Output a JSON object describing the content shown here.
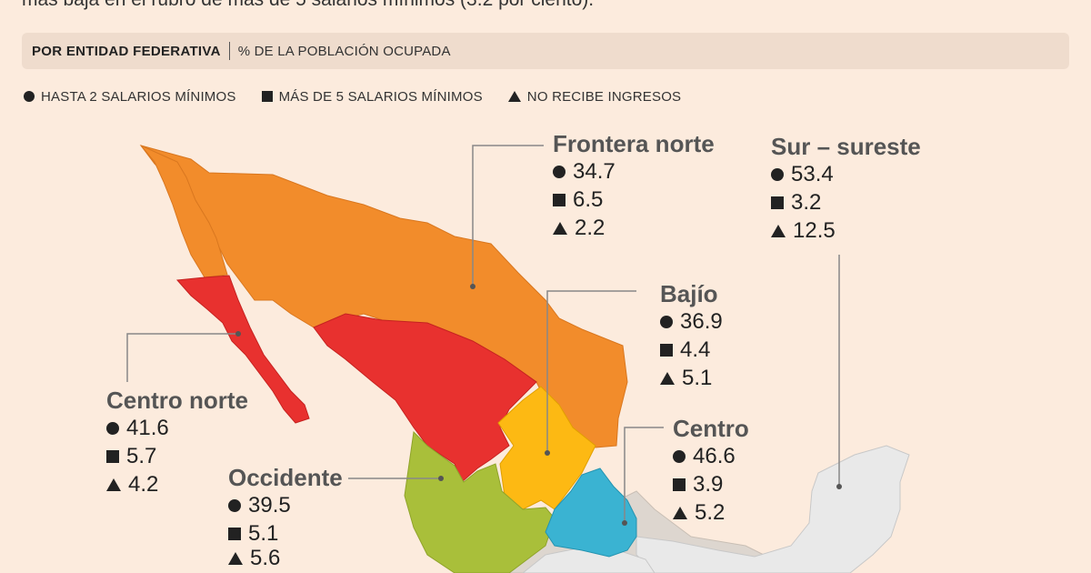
{
  "intro_text": "más baja en el rubro de más de 5 salarios mínimos (3.2 por ciento).",
  "header": {
    "title": "POR ENTIDAD FEDERATIVA",
    "subtitle": "% DE LA POBLACIÓN OCUPADA"
  },
  "legend": [
    {
      "icon": "circle-icon",
      "label": "HASTA 2 SALARIOS MÍNIMOS"
    },
    {
      "icon": "square-icon",
      "label": "MÁS DE 5 SALARIOS MÍNIMOS"
    },
    {
      "icon": "triangle-icon",
      "label": "NO RECIBE INGRESOS"
    }
  ],
  "region_colors": {
    "frontera_norte": "#f28c2b",
    "centro_norte": "#e8312f",
    "bajio": "#fdb913",
    "occidente": "#a9bf3a",
    "centro": "#3ab3d2",
    "sur_sureste": "#e9e9e9",
    "other": "#ddd6cf"
  },
  "regions": {
    "frontera_norte": {
      "name": "Frontera norte",
      "hasta2": "34.7",
      "mas5": "6.5",
      "sin_ingresos": "2.2"
    },
    "sur_sureste": {
      "name": "Sur – sureste",
      "hasta2": "53.4",
      "mas5": "3.2",
      "sin_ingresos": "12.5"
    },
    "bajio": {
      "name": "Bajío",
      "hasta2": "36.9",
      "mas5": "4.4",
      "sin_ingresos": "5.1"
    },
    "centro_norte": {
      "name": "Centro norte",
      "hasta2": "41.6",
      "mas5": "5.7",
      "sin_ingresos": "4.2"
    },
    "centro": {
      "name": "Centro",
      "hasta2": "46.6",
      "mas5": "3.9",
      "sin_ingresos": "5.2"
    },
    "occidente": {
      "name": "Occidente",
      "hasta2": "39.5",
      "mas5": "5.1",
      "sin_ingresos": "5.6"
    }
  }
}
